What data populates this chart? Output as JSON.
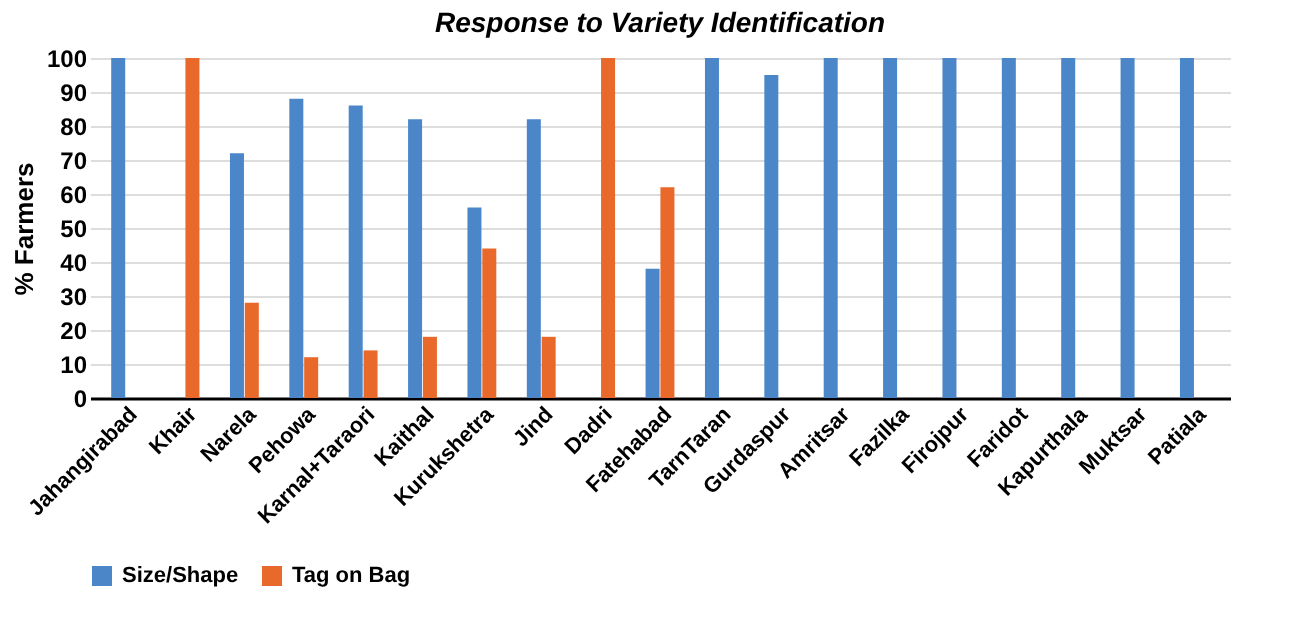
{
  "chart_data": {
    "type": "bar",
    "title": "Response to Variety Identification",
    "ylabel": "% Farmers",
    "categories": [
      "Jahangirabad",
      "Khair",
      "Narela",
      "Pehowa",
      "Karnal+Taraori",
      "Kaithal",
      "Kurukshetra",
      "Jind",
      "Dadri",
      "Fatehabad",
      "TarnTaran",
      "Gurdaspur",
      "Amritsar",
      "Fazilka",
      "Firojpur",
      "Faridot",
      "Kapurthala",
      "Muktsar",
      "Patiala"
    ],
    "series": [
      {
        "name": "Size/Shape",
        "color": "#4a86c8",
        "values": [
          100,
          null,
          72,
          88,
          86,
          82,
          56,
          82,
          null,
          38,
          100,
          95,
          100,
          100,
          100,
          100,
          100,
          100,
          100
        ]
      },
      {
        "name": "Tag on Bag",
        "color": "#e8692a",
        "values": [
          null,
          100,
          28,
          12,
          14,
          18,
          44,
          18,
          100,
          62,
          null,
          null,
          null,
          null,
          null,
          null,
          null,
          null,
          null
        ]
      }
    ],
    "ylim": [
      0,
      100
    ],
    "yticks": [
      0,
      10,
      20,
      30,
      40,
      50,
      60,
      70,
      80,
      90,
      100
    ],
    "grid": "y",
    "legend": "bottom"
  }
}
